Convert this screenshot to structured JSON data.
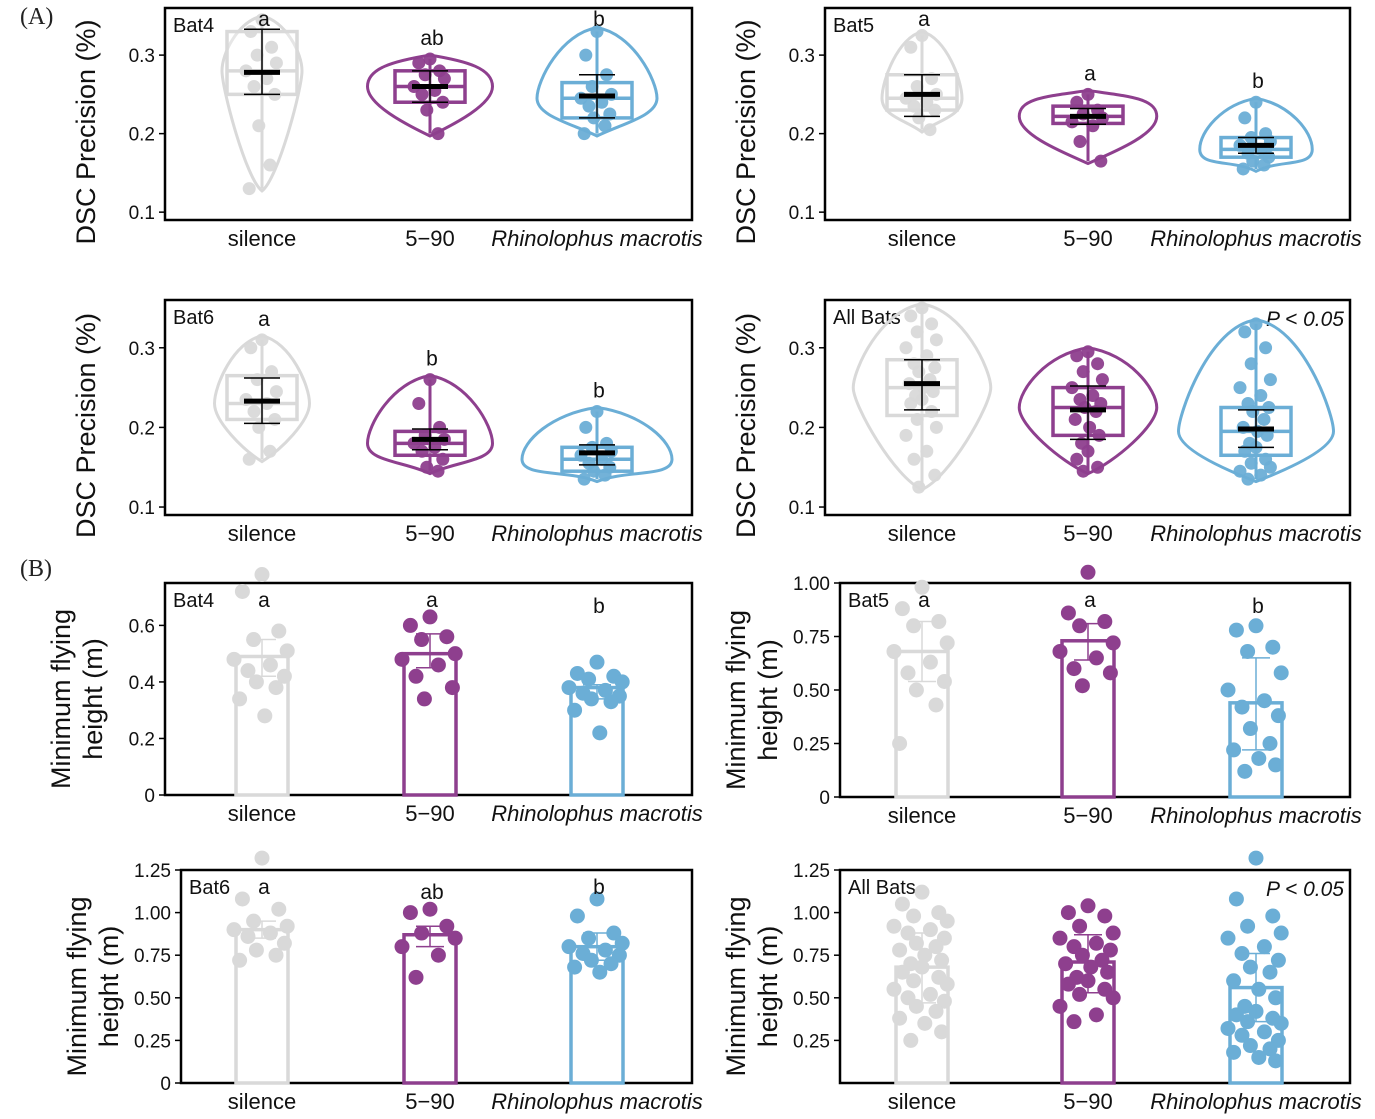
{
  "sections": {
    "a_label": "(A)",
    "b_label": "(B)"
  },
  "colors": {
    "silence": "#d9d9d9",
    "tone": "#8e3f8e",
    "rhino": "#6baed6"
  },
  "chart_data": [
    {
      "id": "A1",
      "type": "violin-box",
      "panel_label": "Bat4",
      "ylabel": "DSC Precision (%)",
      "categories": [
        "silence",
        "5−90",
        "Rhinolophus macrotis"
      ],
      "italic_category": 2,
      "ylim": [
        0.09,
        0.36
      ],
      "yticks": [
        0.1,
        0.2,
        0.3
      ],
      "ytick_labels": [
        "0.1",
        "0.2",
        "0.3"
      ],
      "letters": [
        "a",
        "ab",
        "b"
      ],
      "pvalue": "",
      "groups": [
        {
          "min": 0.13,
          "q1": 0.25,
          "median": 0.28,
          "q3": 0.33,
          "max": 0.345,
          "mean": 0.278,
          "err_lo": 0.25,
          "err_hi": 0.333,
          "vwidth": 0.32,
          "points": [
            0.345,
            0.33,
            0.31,
            0.3,
            0.29,
            0.28,
            0.27,
            0.26,
            0.25,
            0.21,
            0.16,
            0.13
          ]
        },
        {
          "min": 0.2,
          "q1": 0.24,
          "median": 0.26,
          "q3": 0.28,
          "max": 0.295,
          "mean": 0.26,
          "err_lo": 0.24,
          "err_hi": 0.28,
          "vwidth": 0.5,
          "points": [
            0.295,
            0.29,
            0.28,
            0.275,
            0.27,
            0.26,
            0.255,
            0.25,
            0.24,
            0.23,
            0.2
          ]
        },
        {
          "min": 0.2,
          "q1": 0.22,
          "median": 0.245,
          "q3": 0.265,
          "max": 0.33,
          "mean": 0.248,
          "err_lo": 0.22,
          "err_hi": 0.275,
          "vwidth": 0.48,
          "points": [
            0.33,
            0.3,
            0.275,
            0.26,
            0.25,
            0.245,
            0.24,
            0.235,
            0.225,
            0.22,
            0.21,
            0.2
          ]
        }
      ]
    },
    {
      "id": "A2",
      "type": "violin-box",
      "panel_label": "Bat5",
      "ylabel": "DSC Precision (%)",
      "categories": [
        "silence",
        "5−90",
        "Rhinolophus macrotis"
      ],
      "italic_category": 2,
      "ylim": [
        0.09,
        0.36
      ],
      "yticks": [
        0.1,
        0.2,
        0.3
      ],
      "ytick_labels": [
        "0.1",
        "0.2",
        "0.3"
      ],
      "letters": [
        "a",
        "a",
        "b"
      ],
      "pvalue": "",
      "groups": [
        {
          "min": 0.205,
          "q1": 0.23,
          "median": 0.245,
          "q3": 0.275,
          "max": 0.325,
          "mean": 0.25,
          "err_lo": 0.222,
          "err_hi": 0.275,
          "vwidth": 0.32,
          "points": [
            0.325,
            0.31,
            0.27,
            0.26,
            0.25,
            0.245,
            0.24,
            0.235,
            0.23,
            0.22,
            0.205
          ]
        },
        {
          "min": 0.165,
          "q1": 0.213,
          "median": 0.222,
          "q3": 0.235,
          "max": 0.25,
          "mean": 0.222,
          "err_lo": 0.212,
          "err_hi": 0.232,
          "vwidth": 0.55,
          "points": [
            0.25,
            0.24,
            0.23,
            0.225,
            0.22,
            0.215,
            0.21,
            0.19,
            0.165
          ]
        },
        {
          "min": 0.155,
          "q1": 0.17,
          "median": 0.18,
          "q3": 0.195,
          "max": 0.24,
          "mean": 0.185,
          "err_lo": 0.175,
          "err_hi": 0.195,
          "vwidth": 0.45,
          "points": [
            0.24,
            0.22,
            0.2,
            0.195,
            0.19,
            0.185,
            0.18,
            0.175,
            0.17,
            0.165,
            0.16,
            0.155
          ]
        }
      ]
    },
    {
      "id": "A3",
      "type": "violin-box",
      "panel_label": "Bat6",
      "ylabel": "DSC Precision (%)",
      "categories": [
        "silence",
        "5−90",
        "Rhinolophus macrotis"
      ],
      "italic_category": 2,
      "ylim": [
        0.09,
        0.36
      ],
      "yticks": [
        0.1,
        0.2,
        0.3
      ],
      "ytick_labels": [
        "0.1",
        "0.2",
        "0.3"
      ],
      "letters": [
        "a",
        "b",
        "b"
      ],
      "pvalue": "",
      "groups": [
        {
          "min": 0.16,
          "q1": 0.21,
          "median": 0.23,
          "q3": 0.265,
          "max": 0.31,
          "mean": 0.233,
          "err_lo": 0.205,
          "err_hi": 0.262,
          "vwidth": 0.38,
          "points": [
            0.31,
            0.3,
            0.27,
            0.26,
            0.245,
            0.235,
            0.23,
            0.22,
            0.21,
            0.2,
            0.17,
            0.16
          ]
        },
        {
          "min": 0.145,
          "q1": 0.165,
          "median": 0.18,
          "q3": 0.195,
          "max": 0.26,
          "mean": 0.185,
          "err_lo": 0.172,
          "err_hi": 0.198,
          "vwidth": 0.5,
          "points": [
            0.26,
            0.23,
            0.2,
            0.19,
            0.185,
            0.18,
            0.175,
            0.17,
            0.16,
            0.15,
            0.145
          ]
        },
        {
          "min": 0.135,
          "q1": 0.145,
          "median": 0.16,
          "q3": 0.175,
          "max": 0.22,
          "mean": 0.168,
          "err_lo": 0.153,
          "err_hi": 0.178,
          "vwidth": 0.6,
          "points": [
            0.22,
            0.2,
            0.18,
            0.175,
            0.17,
            0.165,
            0.16,
            0.155,
            0.15,
            0.145,
            0.14,
            0.135
          ]
        }
      ]
    },
    {
      "id": "A4",
      "type": "violin-box",
      "panel_label": "All Bats",
      "ylabel": "DSC Precision (%)",
      "categories": [
        "silence",
        "5−90",
        "Rhinolophus macrotis"
      ],
      "italic_category": 2,
      "ylim": [
        0.09,
        0.36
      ],
      "yticks": [
        0.1,
        0.2,
        0.3
      ],
      "ytick_labels": [
        "0.1",
        "0.2",
        "0.3"
      ],
      "letters": [
        "",
        "",
        ""
      ],
      "pvalue": "P < 0.05",
      "groups": [
        {
          "min": 0.125,
          "q1": 0.215,
          "median": 0.25,
          "q3": 0.285,
          "max": 0.35,
          "mean": 0.255,
          "err_lo": 0.222,
          "err_hi": 0.285,
          "vwidth": 0.55,
          "points": [
            0.35,
            0.34,
            0.33,
            0.32,
            0.31,
            0.3,
            0.29,
            0.28,
            0.275,
            0.27,
            0.26,
            0.255,
            0.25,
            0.245,
            0.24,
            0.235,
            0.23,
            0.22,
            0.21,
            0.2,
            0.19,
            0.17,
            0.16,
            0.14,
            0.125
          ]
        },
        {
          "min": 0.145,
          "q1": 0.19,
          "median": 0.225,
          "q3": 0.25,
          "max": 0.295,
          "mean": 0.222,
          "err_lo": 0.185,
          "err_hi": 0.252,
          "vwidth": 0.55,
          "points": [
            0.295,
            0.29,
            0.28,
            0.27,
            0.26,
            0.25,
            0.24,
            0.235,
            0.23,
            0.225,
            0.22,
            0.21,
            0.2,
            0.19,
            0.18,
            0.17,
            0.16,
            0.15,
            0.145
          ]
        },
        {
          "min": 0.135,
          "q1": 0.165,
          "median": 0.195,
          "q3": 0.225,
          "max": 0.33,
          "mean": 0.198,
          "err_lo": 0.175,
          "err_hi": 0.222,
          "vwidth": 0.62,
          "points": [
            0.33,
            0.32,
            0.3,
            0.28,
            0.26,
            0.25,
            0.24,
            0.23,
            0.225,
            0.22,
            0.21,
            0.2,
            0.195,
            0.19,
            0.18,
            0.175,
            0.17,
            0.16,
            0.155,
            0.15,
            0.145,
            0.14,
            0.135
          ]
        }
      ]
    },
    {
      "id": "B1",
      "type": "bar",
      "panel_label": "Bat4",
      "ylabel_lines": [
        "Minimum flying",
        "height (m)"
      ],
      "categories": [
        "silence",
        "5−90",
        "Rhinolophus macrotis"
      ],
      "italic_category": 2,
      "ylim": [
        0,
        0.75
      ],
      "yticks": [
        0,
        0.2,
        0.4,
        0.6
      ],
      "ytick_labels": [
        "0",
        "0.2",
        "0.4",
        "0.6"
      ],
      "letters": [
        "a",
        "a",
        "b"
      ],
      "pvalue": "",
      "values": [
        0.49,
        0.5,
        0.38
      ],
      "err_lo": [
        0.42,
        0.45,
        0.34
      ],
      "err_hi": [
        0.55,
        0.57,
        0.39
      ],
      "points": [
        [
          0.78,
          0.72,
          0.58,
          0.55,
          0.51,
          0.48,
          0.46,
          0.44,
          0.42,
          0.4,
          0.38,
          0.34,
          0.28
        ],
        [
          0.63,
          0.6,
          0.56,
          0.55,
          0.5,
          0.48,
          0.46,
          0.42,
          0.38,
          0.34
        ],
        [
          0.47,
          0.43,
          0.42,
          0.41,
          0.4,
          0.38,
          0.37,
          0.36,
          0.35,
          0.34,
          0.33,
          0.3,
          0.22
        ]
      ]
    },
    {
      "id": "B2",
      "type": "bar",
      "panel_label": "Bat5",
      "ylabel_lines": [
        "Minimum flying",
        "height (m)"
      ],
      "categories": [
        "silence",
        "5−90",
        "Rhinolophus macrotis"
      ],
      "italic_category": 2,
      "ylim": [
        0,
        1.0
      ],
      "yticks": [
        0,
        0.25,
        0.5,
        0.75,
        1.0
      ],
      "ytick_labels": [
        "0",
        "0.25",
        "0.50",
        "0.75",
        "1.00"
      ],
      "letters": [
        "a",
        "a",
        "b"
      ],
      "pvalue": "",
      "values": [
        0.68,
        0.73,
        0.44
      ],
      "err_lo": [
        0.54,
        0.64,
        0.22
      ],
      "err_hi": [
        0.82,
        0.81,
        0.65
      ],
      "points": [
        [
          0.98,
          0.88,
          0.82,
          0.8,
          0.72,
          0.68,
          0.63,
          0.58,
          0.54,
          0.5,
          0.43,
          0.25
        ],
        [
          1.05,
          0.86,
          0.82,
          0.8,
          0.72,
          0.68,
          0.65,
          0.6,
          0.58,
          0.52
        ],
        [
          0.8,
          0.78,
          0.7,
          0.68,
          0.58,
          0.5,
          0.45,
          0.42,
          0.38,
          0.32,
          0.25,
          0.22,
          0.18,
          0.15,
          0.12
        ]
      ]
    },
    {
      "id": "B3",
      "type": "bar",
      "panel_label": "Bat6",
      "ylabel_lines": [
        "Minimum flying",
        "height (m)"
      ],
      "categories": [
        "silence",
        "5−90",
        "Rhinolophus macrotis"
      ],
      "italic_category": 2,
      "ylim": [
        0,
        1.25
      ],
      "yticks": [
        0,
        0.25,
        0.5,
        0.75,
        1.0,
        1.25
      ],
      "ytick_labels": [
        "0",
        "0.25",
        "0.50",
        "0.75",
        "1.00",
        "1.25"
      ],
      "letters": [
        "a",
        "ab",
        "b"
      ],
      "pvalue": "",
      "values": [
        0.9,
        0.87,
        0.8
      ],
      "err_lo": [
        0.85,
        0.8,
        0.72
      ],
      "err_hi": [
        0.95,
        0.92,
        0.88
      ],
      "points": [
        [
          1.32,
          1.08,
          1.02,
          0.95,
          0.92,
          0.9,
          0.88,
          0.86,
          0.82,
          0.78,
          0.75,
          0.72
        ],
        [
          1.02,
          1.0,
          0.92,
          0.88,
          0.85,
          0.8,
          0.75,
          0.62
        ],
        [
          1.08,
          0.98,
          0.88,
          0.85,
          0.82,
          0.8,
          0.78,
          0.76,
          0.75,
          0.72,
          0.7,
          0.68,
          0.65
        ]
      ]
    },
    {
      "id": "B4",
      "type": "bar",
      "panel_label": "All Bats",
      "ylabel_lines": [
        "Minimum flying",
        "height (m)"
      ],
      "categories": [
        "silence",
        "5−90",
        "Rhinolophus macrotis"
      ],
      "italic_category": 2,
      "ylim": [
        0,
        1.25
      ],
      "yticks": [
        0.25,
        0.5,
        0.75,
        1.0,
        1.25
      ],
      "ytick_labels": [
        "0.25",
        "0.50",
        "0.75",
        "1.00",
        "1.25"
      ],
      "letters": [
        "",
        "",
        ""
      ],
      "pvalue": "P < 0.05",
      "values": [
        0.68,
        0.71,
        0.56
      ],
      "err_lo": [
        0.47,
        0.53,
        0.36
      ],
      "err_hi": [
        0.88,
        0.87,
        0.76
      ],
      "points": [
        [
          1.12,
          1.05,
          1.0,
          0.98,
          0.95,
          0.92,
          0.9,
          0.88,
          0.85,
          0.82,
          0.8,
          0.78,
          0.75,
          0.72,
          0.7,
          0.68,
          0.65,
          0.62,
          0.6,
          0.58,
          0.55,
          0.52,
          0.5,
          0.48,
          0.45,
          0.42,
          0.38,
          0.35,
          0.3,
          0.25
        ],
        [
          1.04,
          1.0,
          0.98,
          0.92,
          0.88,
          0.85,
          0.82,
          0.8,
          0.78,
          0.75,
          0.72,
          0.7,
          0.68,
          0.65,
          0.62,
          0.6,
          0.58,
          0.55,
          0.52,
          0.5,
          0.45,
          0.4,
          0.36
        ],
        [
          1.32,
          1.08,
          0.98,
          0.92,
          0.88,
          0.85,
          0.8,
          0.76,
          0.72,
          0.68,
          0.65,
          0.6,
          0.55,
          0.5,
          0.45,
          0.42,
          0.4,
          0.38,
          0.36,
          0.35,
          0.32,
          0.3,
          0.28,
          0.25,
          0.22,
          0.2,
          0.18,
          0.15,
          0.13
        ]
      ]
    }
  ]
}
